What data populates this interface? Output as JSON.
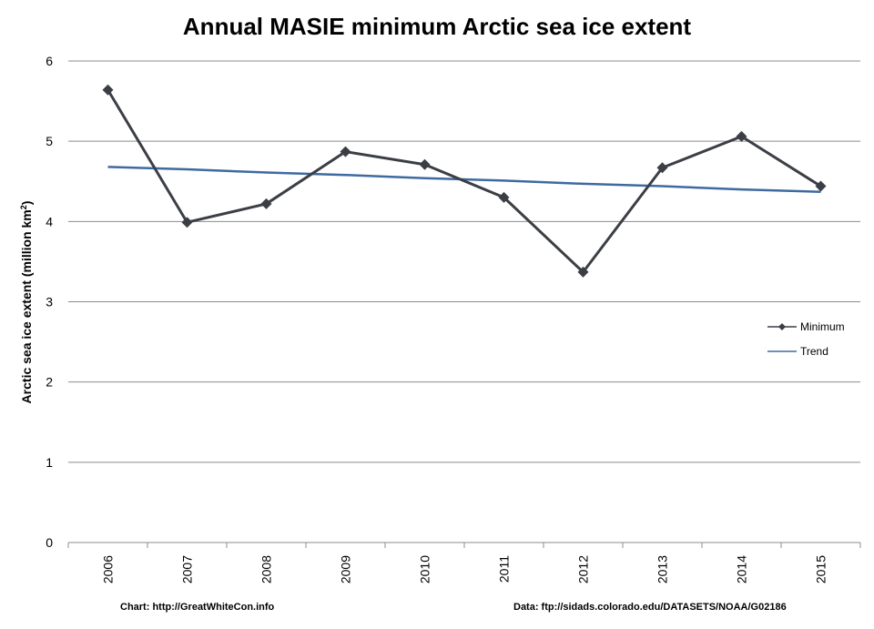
{
  "chart_data": {
    "type": "line",
    "title": "Annual MASIE minimum Arctic sea ice extent",
    "ylabel": "Arctic sea ice extent (million km",
    "ylabel_sup": "2",
    "ylabel_close": ")",
    "xlabel": "",
    "ylim": [
      0,
      6
    ],
    "yticks": [
      "0",
      "1",
      "2",
      "3",
      "4",
      "5",
      "6"
    ],
    "categories": [
      "2006",
      "2007",
      "2008",
      "2009",
      "2010",
      "2011",
      "2012",
      "2013",
      "2014",
      "2015"
    ],
    "grid": true,
    "legend_position": "right",
    "series": [
      {
        "name": "Minimum",
        "color": "#3b3f45",
        "marker": "diamond",
        "values": [
          5.64,
          3.99,
          4.22,
          4.87,
          4.71,
          4.3,
          3.37,
          4.67,
          5.06,
          4.44
        ]
      },
      {
        "name": "Trend",
        "color": "#3e6aa0",
        "marker": "none",
        "values": [
          4.68,
          4.65,
          4.61,
          4.58,
          4.54,
          4.51,
          4.47,
          4.44,
          4.4,
          4.37
        ]
      }
    ]
  },
  "footer": {
    "left": "Chart: http://GreatWhiteCon.info",
    "right": "Data: ftp://sidads.colorado.edu/DATASETS/NOAA/G02186"
  }
}
